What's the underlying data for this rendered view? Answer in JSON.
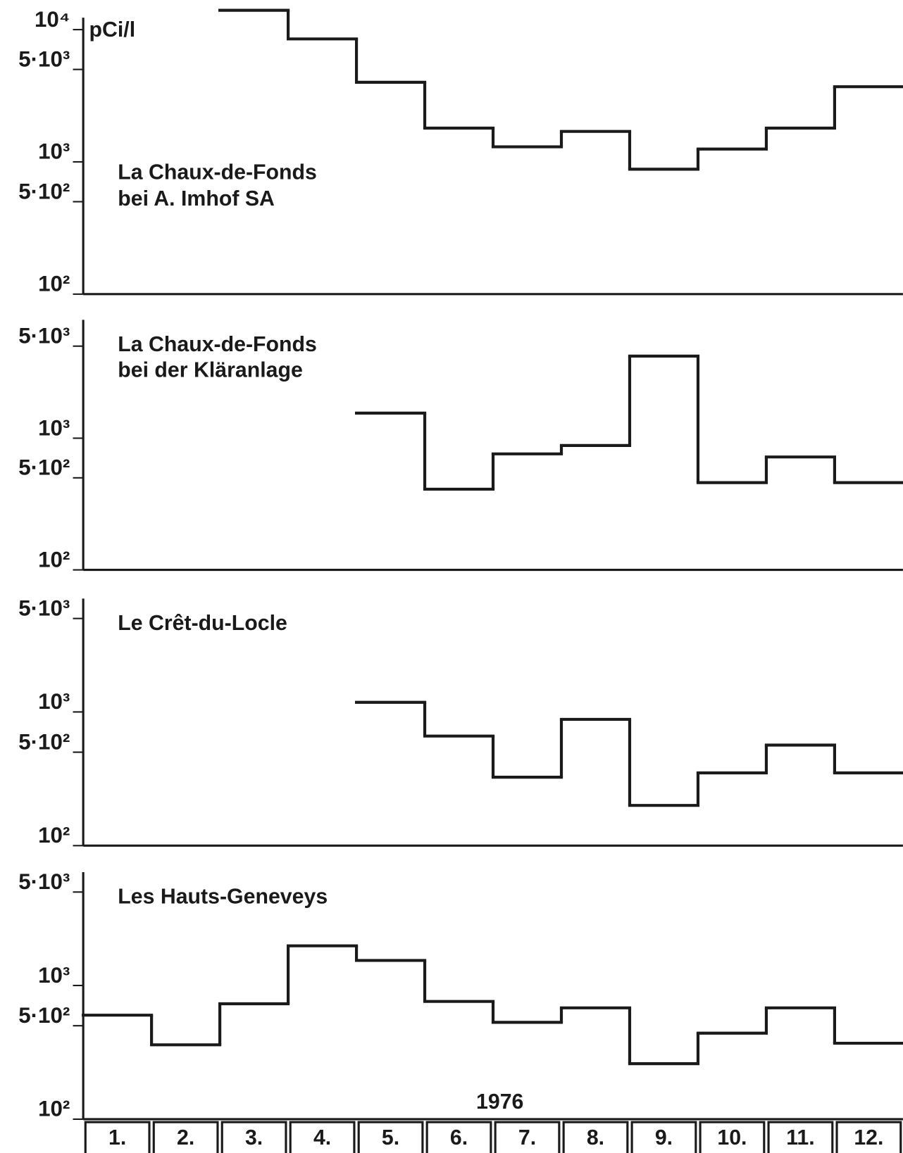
{
  "chart_data": [
    {
      "type": "step",
      "title": "La Chaux-de-Fonds",
      "subtitle": "bei A. Imhof SA",
      "y_label": "pCi/l",
      "log_scale": true,
      "color": "#1a1a1a",
      "values": [
        null,
        null,
        14000,
        8500,
        4000,
        1800,
        1300,
        1700,
        880,
        1250,
        1800,
        3700
      ],
      "ylim": [
        100,
        14000
      ],
      "yticks": [
        {
          "value": 10000,
          "label": "10⁴"
        },
        {
          "value": 5000,
          "label": "5·10³"
        },
        {
          "value": 1000,
          "label": "10³"
        },
        {
          "value": 500,
          "label": "5·10²"
        },
        {
          "value": 100,
          "label": "10²"
        }
      ]
    },
    {
      "type": "step",
      "title": "La Chaux-de-Fonds",
      "subtitle": "bei der Kläranlage",
      "log_scale": true,
      "color": "#1a1a1a",
      "values": [
        null,
        null,
        null,
        null,
        1550,
        410,
        760,
        880,
        4200,
        460,
        720,
        460
      ],
      "ylim": [
        100,
        9000
      ],
      "yticks": [
        {
          "value": 5000,
          "label": "5·10³"
        },
        {
          "value": 1000,
          "label": "10³"
        },
        {
          "value": 500,
          "label": "5·10²"
        },
        {
          "value": 100,
          "label": "10²"
        }
      ]
    },
    {
      "type": "step",
      "title": "Le Crêt-du-Locle",
      "log_scale": true,
      "color": "#1a1a1a",
      "values": [
        null,
        null,
        null,
        null,
        1180,
        660,
        325,
        880,
        200,
        350,
        565,
        350
      ],
      "ylim": [
        100,
        8000
      ],
      "yticks": [
        {
          "value": 5000,
          "label": "5·10³"
        },
        {
          "value": 1000,
          "label": "10³"
        },
        {
          "value": 500,
          "label": "5·10²"
        },
        {
          "value": 100,
          "label": "10²"
        }
      ]
    },
    {
      "type": "step",
      "title": "Les Hauts-Geneveys",
      "x_label": "1976",
      "log_scale": true,
      "color": "#1a1a1a",
      "categories": [
        "1.",
        "2.",
        "3.",
        "4.",
        "5.",
        "6.",
        "7.",
        "8.",
        "9.",
        "10.",
        "11.",
        "12."
      ],
      "values": [
        600,
        360,
        730,
        1980,
        1540,
        760,
        530,
        680,
        260,
        440,
        680,
        370
      ],
      "ylim": [
        100,
        8000
      ],
      "yticks": [
        {
          "value": 5000,
          "label": "5·10³"
        },
        {
          "value": 1000,
          "label": "10³"
        },
        {
          "value": 500,
          "label": "5·10²"
        },
        {
          "value": 100,
          "label": "10²"
        }
      ]
    }
  ]
}
